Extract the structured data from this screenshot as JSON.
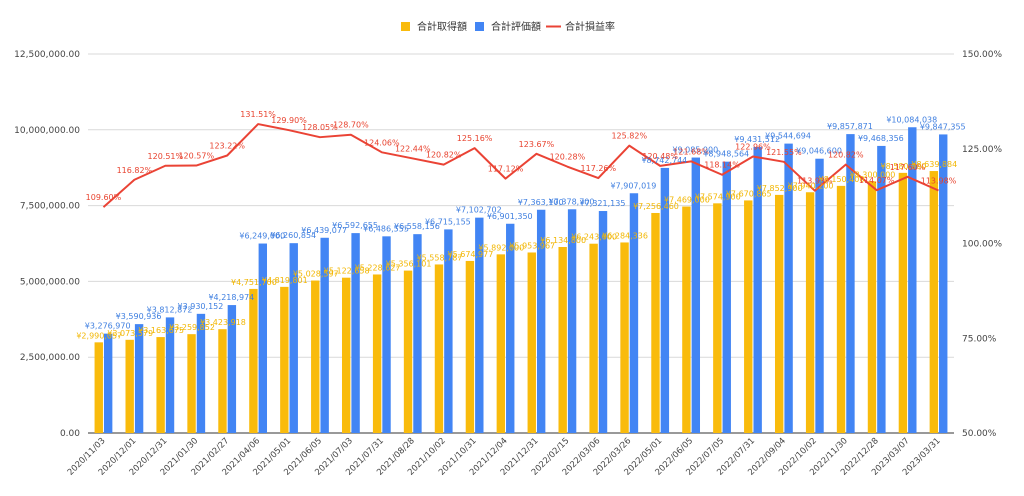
{
  "chart_data": {
    "type": "bar",
    "title": "",
    "legend_position": "top-center",
    "grid": true,
    "categories": [
      "2020/11/03",
      "2020/12/01",
      "2020/12/31",
      "2021/01/30",
      "2021/02/27",
      "2021/04/06",
      "2021/05/01",
      "2021/06/05",
      "2021/07/03",
      "2021/07/31",
      "2021/08/28",
      "2021/10/02",
      "2021/10/31",
      "2021/12/04",
      "2021/12/31",
      "2022/02/15",
      "2022/03/06",
      "2022/03/26",
      "2022/05/01",
      "2022/06/05",
      "2022/07/05",
      "2022/07/31",
      "2022/09/04",
      "2022/10/02",
      "2022/11/30",
      "2022/12/28",
      "2023/03/07",
      "2023/03/31"
    ],
    "x_tick_labels": [
      "2020/11/03",
      "2020/12/01",
      "2020/12/31",
      "2021/01/30",
      "2021/02/27",
      "2021/04/06",
      "2021/05/01",
      "2021/06/05",
      "2021/07/03",
      "2021/07/31",
      "2021/08/28",
      "2021/10/02",
      "2021/10/31",
      "2021/12/04",
      "2021/12/31",
      "2022/02/15",
      "2022/03/06",
      "2022/03/26",
      "2022/05/01",
      "2022/06/05",
      "2022/07/05",
      "2022/07/31",
      "2022/09/04",
      "2022/10/02",
      "2022/11/30",
      "2022/12/28",
      "2023/03/07",
      "2023/03/31"
    ],
    "series": [
      {
        "name": "合計取得額",
        "type": "bar",
        "axis": "left",
        "color": "#f9bb0c",
        "values": [
          2990057,
          3073579,
          3163675,
          3259852,
          3423918,
          4751700,
          4819801,
          5028597,
          5122658,
          5228627,
          5356101,
          5558787,
          5674977,
          5892000,
          5953967,
          6134800,
          6243000,
          6284336,
          7256460,
          7469000,
          7574900,
          7670865,
          7852900,
          7940200,
          8150400,
          8300000,
          8580000,
          8639884
        ],
        "labels": [
          "¥2,990,057",
          "¥3,073,579",
          "¥3,163,675",
          "¥3,259,852",
          "¥3,423,918",
          "¥4,751,700",
          "¥4,819,801",
          "¥5,028,597",
          "¥5,122,658",
          "¥5,228,627",
          "¥5,356,101",
          "¥5,558,787",
          "¥5,674,977",
          "¥5,892,000",
          "¥5,953,967",
          "¥6,134,800",
          "¥6,243,000",
          "¥6,284,336",
          "¥7,256,460",
          "¥7,469,000",
          "¥7,574,900",
          "¥7,670,865",
          "¥7,852,900",
          "¥7,940,200",
          "¥8,150,400",
          "¥8,300,000",
          "¥8,580,000",
          "¥8,639,884"
        ]
      },
      {
        "name": "合計評価額",
        "type": "bar",
        "axis": "left",
        "color": "#4285f4",
        "values": [
          3276970,
          3590936,
          3812872,
          3930152,
          4218974,
          6249000,
          6260854,
          6439077,
          6592655,
          6486555,
          6558156,
          6715155,
          7102702,
          6901350,
          7363100,
          7378700,
          7321135,
          7907019,
          8742744,
          9085000,
          8948564,
          9431512,
          9544694,
          9046600,
          9857871,
          9468356,
          10084038,
          9847355
        ],
        "labels": [
          "¥3,276,970",
          "¥3,590,936",
          "¥3,812,872",
          "¥3,930,152",
          "¥4,218,974",
          "¥6,249,000",
          "¥6,260,854",
          "¥6,439,077",
          "¥6,592,655",
          "¥6,486,555",
          "¥6,558,156",
          "¥6,715,155",
          "¥7,102,702",
          "¥6,901,350",
          "¥7,363,100",
          "¥7,378,700",
          "¥7,321,135",
          "¥7,907,019",
          "¥8,742,744",
          "¥9,085,000",
          "¥8,948,564",
          "¥9,431,512",
          "¥9,544,694",
          "¥9,046,600",
          "¥9,857,871",
          "¥9,468,356",
          "¥10,084,038",
          "¥9,847,355"
        ]
      },
      {
        "name": "合計損益率",
        "type": "line",
        "axis": "right",
        "color": "#ea4335",
        "values": [
          109.6,
          116.82,
          120.51,
          120.57,
          123.22,
          131.51,
          129.9,
          128.05,
          128.7,
          124.06,
          122.44,
          120.82,
          125.16,
          117.12,
          123.67,
          120.28,
          117.26,
          125.82,
          120.48,
          121.68,
          118.14,
          122.96,
          121.55,
          113.93,
          120.82,
          114.07,
          117.6,
          113.98
        ],
        "labels": [
          "109.60%",
          "116.82%",
          "120.51%",
          "120.57%",
          "123.22%",
          "131.51%",
          "129.90%",
          "128.05%",
          "128.70%",
          "124.06%",
          "122.44%",
          "120.82%",
          "125.16%",
          "117.12%",
          "123.67%",
          "120.28%",
          "117.26%",
          "125.82%",
          "120.48%",
          "121.68%",
          "118.14%",
          "122.96%",
          "121.55%",
          "113.93%",
          "120.82%",
          "114.07%",
          "117.60%",
          "113.98%"
        ]
      }
    ],
    "ylim": [
      0,
      12500000
    ],
    "y_ticks": [
      0,
      2500000,
      5000000,
      7500000,
      10000000,
      12500000
    ],
    "y_tick_labels": [
      "0.00",
      "2,500,000.00",
      "5,000,000.00",
      "7,500,000.00",
      "10,000,000.00",
      "12,500,000.00"
    ],
    "y2lim": [
      50,
      150
    ],
    "y2_ticks": [
      50,
      75,
      100,
      125,
      150
    ],
    "y2_tick_labels": [
      "50.00%",
      "75.00%",
      "100.00%",
      "125.00%",
      "150.00%"
    ]
  }
}
